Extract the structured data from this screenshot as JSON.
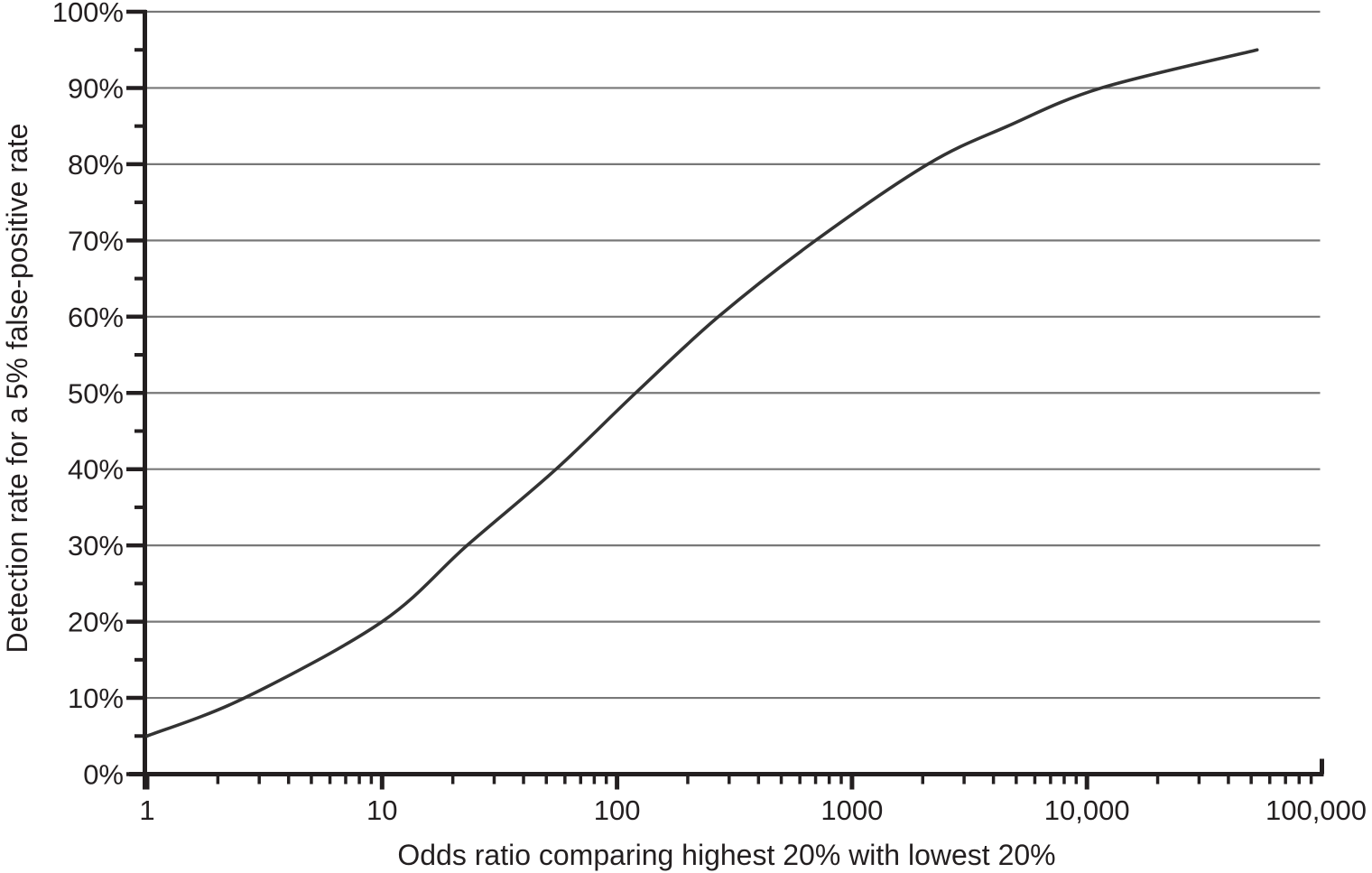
{
  "chart_data": {
    "type": "line",
    "title": "",
    "xlabel": "Odds ratio comparing highest 20% with lowest 20%",
    "ylabel": "Detection rate for a 5% false-positive rate",
    "x_scale": "log",
    "xlim": [
      1,
      100000
    ],
    "ylim": [
      0,
      100
    ],
    "grid": "horizontal-gridlines-every-10-percent",
    "legend": "none",
    "x_ticks": [
      {
        "value": 1,
        "label": "1"
      },
      {
        "value": 10,
        "label": "10"
      },
      {
        "value": 100,
        "label": "100"
      },
      {
        "value": 1000,
        "label": "1000"
      },
      {
        "value": 10000,
        "label": "10,000"
      },
      {
        "value": 100000,
        "label": "100,000"
      }
    ],
    "x_minor_ticks": [
      2,
      3,
      4,
      5,
      6,
      7,
      8,
      9
    ],
    "y_ticks": [
      {
        "value": 0,
        "label": "0%"
      },
      {
        "value": 10,
        "label": "10%"
      },
      {
        "value": 20,
        "label": "20%"
      },
      {
        "value": 30,
        "label": "30%"
      },
      {
        "value": 40,
        "label": "40%"
      },
      {
        "value": 50,
        "label": "50%"
      },
      {
        "value": 60,
        "label": "60%"
      },
      {
        "value": 70,
        "label": "70%"
      },
      {
        "value": 80,
        "label": "80%"
      },
      {
        "value": 90,
        "label": "90%"
      },
      {
        "value": 100,
        "label": "100%"
      }
    ],
    "y_minor_tick_step": 5,
    "series": [
      {
        "name": "Detection rate for a 5% false-positive rate",
        "points": [
          {
            "odds_ratio": 1,
            "detection_rate_pct": 5
          },
          {
            "odds_ratio": 2.6,
            "detection_rate_pct": 10
          },
          {
            "odds_ratio": 10,
            "detection_rate_pct": 20
          },
          {
            "odds_ratio": 23,
            "detection_rate_pct": 30
          },
          {
            "odds_ratio": 55,
            "detection_rate_pct": 40
          },
          {
            "odds_ratio": 120,
            "detection_rate_pct": 50
          },
          {
            "odds_ratio": 270,
            "detection_rate_pct": 60
          },
          {
            "odds_ratio": 700,
            "detection_rate_pct": 70
          },
          {
            "odds_ratio": 2100,
            "detection_rate_pct": 80
          },
          {
            "odds_ratio": 4600,
            "detection_rate_pct": 85
          },
          {
            "odds_ratio": 11500,
            "detection_rate_pct": 90
          },
          {
            "odds_ratio": 53000,
            "detection_rate_pct": 95
          }
        ]
      }
    ],
    "colors": {
      "curve": "#333333",
      "axis": "#231f20",
      "grid": "#787878",
      "text": "#231f20",
      "background": "#ffffff"
    }
  }
}
